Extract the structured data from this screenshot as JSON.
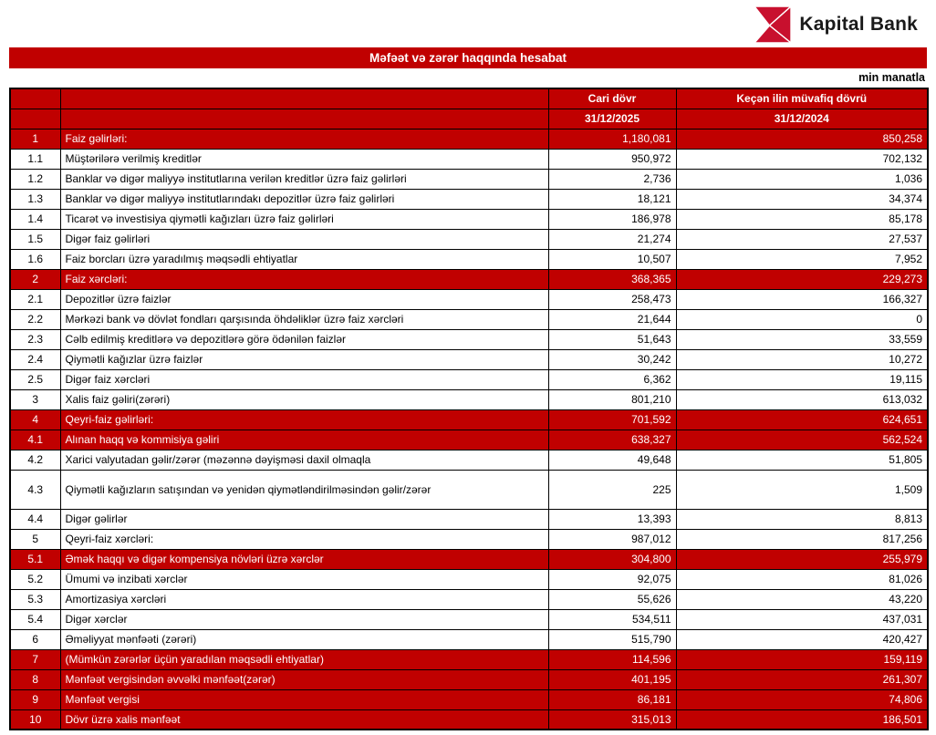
{
  "colors": {
    "accent_red": "#c00000",
    "logo_red": "#c8102e",
    "border_black": "#000000"
  },
  "header": {
    "logo_text": "Kapital Bank",
    "title": "Məfəət və zərər haqqında hesabat",
    "unit_note": "min manatla"
  },
  "table": {
    "header": {
      "current_period": "Cari dövr",
      "previous_period": "Keçən ilin müvafiq dövrü",
      "current_date": "31/12/2025",
      "previous_date": "31/12/2024"
    },
    "rows": [
      {
        "no": "1",
        "label": "Faiz gəlirləri:",
        "cur": "1,180,081",
        "prev": "850,258",
        "red": true,
        "label_bold": true,
        "values_bold": true,
        "tall": false
      },
      {
        "no": "1.1",
        "label": "Müştərilərə verilmiş kreditlər",
        "cur": "950,972",
        "prev": "702,132",
        "red": false,
        "label_bold": false,
        "values_bold": false,
        "tall": false
      },
      {
        "no": "1.2",
        "label": "Banklar və digər maliyyə institutlarına verilən kreditlər üzrə faiz gəlirləri",
        "cur": "2,736",
        "prev": "1,036",
        "red": false,
        "label_bold": false,
        "values_bold": false,
        "tall": false
      },
      {
        "no": "1.3",
        "label": "Banklar və digər maliyyə institutlarındakı depozitlər üzrə faiz gəlirləri",
        "cur": "18,121",
        "prev": "34,374",
        "red": false,
        "label_bold": false,
        "values_bold": false,
        "tall": false
      },
      {
        "no": "1.4",
        "label": "Ticarət və investisiya qiymətli kağızları üzrə faiz gəlirləri",
        "cur": "186,978",
        "prev": "85,178",
        "red": false,
        "label_bold": false,
        "values_bold": false,
        "tall": false
      },
      {
        "no": "1.5",
        "label": "Digər faiz gəlirləri",
        "cur": "21,274",
        "prev": "27,537",
        "red": false,
        "label_bold": false,
        "values_bold": false,
        "tall": false
      },
      {
        "no": "1.6",
        "label": "Faiz borcları üzrə yaradılmış məqsədli ehtiyatlar",
        "cur": "10,507",
        "prev": "7,952",
        "red": false,
        "label_bold": true,
        "values_bold": false,
        "tall": false
      },
      {
        "no": "2",
        "label": "Faiz xərcləri:",
        "cur": "368,365",
        "prev": "229,273",
        "red": true,
        "label_bold": true,
        "values_bold": true,
        "tall": false
      },
      {
        "no": "2.1",
        "label": "Depozitlər üzrə faizlər",
        "cur": "258,473",
        "prev": "166,327",
        "red": false,
        "label_bold": false,
        "values_bold": false,
        "tall": false
      },
      {
        "no": "2.2",
        "label": "Mərkəzi bank və dövlət fondları qarşısında öhdəliklər üzrə faiz xərcləri",
        "cur": "21,644",
        "prev": "0",
        "red": false,
        "label_bold": false,
        "values_bold": false,
        "tall": false
      },
      {
        "no": "2.3",
        "label": "Cəlb edilmiş kreditlərə və depozitlərə görə ödənilən faizlər",
        "cur": "51,643",
        "prev": "33,559",
        "red": false,
        "label_bold": false,
        "values_bold": false,
        "tall": false
      },
      {
        "no": "2.4",
        "label": "Qiymətli kağızlar üzrə faizlər",
        "cur": "30,242",
        "prev": "10,272",
        "red": false,
        "label_bold": false,
        "values_bold": false,
        "tall": false
      },
      {
        "no": "2.5",
        "label": "Digər faiz xərcləri",
        "cur": "6,362",
        "prev": "19,115",
        "red": false,
        "label_bold": false,
        "values_bold": false,
        "tall": false
      },
      {
        "no": "3",
        "label": "Xalis faiz gəliri(zərəri)",
        "cur": "801,210",
        "prev": "613,032",
        "red": false,
        "label_bold": false,
        "values_bold": false,
        "tall": false
      },
      {
        "no": "4",
        "label": "Qeyri-faiz gəlirləri:",
        "cur": "701,592",
        "prev": "624,651",
        "red": true,
        "label_bold": true,
        "values_bold": true,
        "tall": false
      },
      {
        "no": "4.1",
        "label": "Alınan haqq və kommisiya gəliri",
        "cur": "638,327",
        "prev": "562,524",
        "red": true,
        "label_bold": true,
        "values_bold": true,
        "tall": false
      },
      {
        "no": "4.2",
        "label": "Xarici valyutadan gəlir/zərər (məzənnə dəyişməsi daxil olmaqla",
        "cur": "49,648",
        "prev": "51,805",
        "red": false,
        "label_bold": false,
        "values_bold": false,
        "tall": false
      },
      {
        "no": "4.3",
        "label": "Qiymətli kağızların satışından və yenidən qiymətləndirilməsindən gəlir/zərər",
        "cur": "225",
        "prev": "1,509",
        "red": false,
        "label_bold": false,
        "values_bold": false,
        "tall": true
      },
      {
        "no": "4.4",
        "label": "Digər gəlirlər",
        "cur": "13,393",
        "prev": "8,813",
        "red": false,
        "label_bold": false,
        "values_bold": false,
        "tall": false
      },
      {
        "no": "5",
        "label": "Qeyri-faiz xərcləri:",
        "cur": "987,012",
        "prev": "817,256",
        "red": false,
        "label_bold": false,
        "values_bold": false,
        "tall": false
      },
      {
        "no": "5.1",
        "label": "Əmək haqqı və digər kompensiya növləri üzrə xərclər",
        "cur": "304,800",
        "prev": "255,979",
        "red": true,
        "label_bold": true,
        "values_bold": true,
        "tall": false
      },
      {
        "no": "5.2",
        "label": "Ümumi və inzibati xərclər",
        "cur": "92,075",
        "prev": "81,026",
        "red": false,
        "label_bold": false,
        "values_bold": false,
        "tall": false
      },
      {
        "no": "5.3",
        "label": "Amortizasiya xərcləri",
        "cur": "55,626",
        "prev": "43,220",
        "red": false,
        "label_bold": false,
        "values_bold": false,
        "tall": false
      },
      {
        "no": "5.4",
        "label": "Digər xərclər",
        "cur": "534,511",
        "prev": "437,031",
        "red": false,
        "label_bold": false,
        "values_bold": false,
        "tall": false
      },
      {
        "no": "6",
        "label": "Əməliyyat mənfəəti (zərəri)",
        "cur": "515,790",
        "prev": "420,427",
        "red": false,
        "label_bold": false,
        "values_bold": false,
        "tall": false
      },
      {
        "no": "7",
        "label": "(Mümkün zərərlər üçün yaradılan məqsədli ehtiyatlar)",
        "cur": "114,596",
        "prev": "159,119",
        "red": true,
        "label_bold": true,
        "values_bold": true,
        "tall": false
      },
      {
        "no": "8",
        "label": "Mənfəət vergisindən əvvəlki mənfəət(zərər)",
        "cur": "401,195",
        "prev": "261,307",
        "red": true,
        "label_bold": true,
        "values_bold": false,
        "tall": false
      },
      {
        "no": "9",
        "label": "Mənfəət vergisi",
        "cur": "86,181",
        "prev": "74,806",
        "red": true,
        "label_bold": true,
        "values_bold": true,
        "tall": false
      },
      {
        "no": "10",
        "label": "Dövr üzrə xalis mənfəət",
        "cur": "315,013",
        "prev": "186,501",
        "red": true,
        "label_bold": true,
        "values_bold": false,
        "tall": false
      }
    ]
  }
}
